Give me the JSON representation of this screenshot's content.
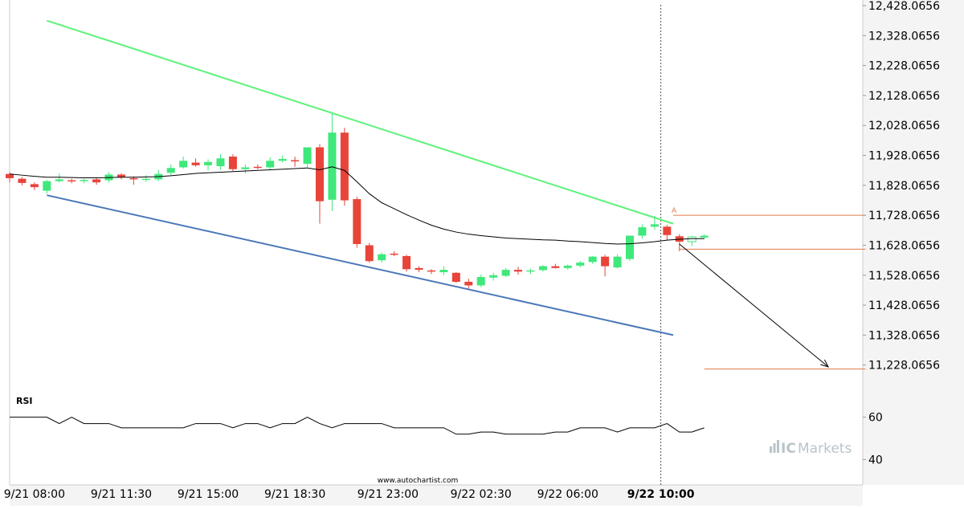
{
  "watermark": "www.autochartist.com",
  "brand": {
    "prefix": "IC",
    "name": "Markets"
  },
  "colors": {
    "up": "#3fe87a",
    "down": "#e8443a",
    "resistance": "#5df27a",
    "support": "#4a78b8",
    "level": "#e07a4a",
    "ma": "#000000",
    "axis": "#cccccc",
    "panel_bg": "#f4f4f4"
  },
  "chart_data": [
    {
      "type": "candlestick",
      "panel": "price",
      "ylim": [
        11128.0656,
        12428.0656
      ],
      "y_ticks": [
        "12,428.0656",
        "12,328.0656",
        "12,228.0656",
        "12,128.0656",
        "12,028.0656",
        "11,928.0656",
        "11,828.0656",
        "11,728.0656",
        "11,628.0656",
        "11,528.0656",
        "11,428.0656",
        "11,328.0656",
        "11,228.0656"
      ],
      "x_ticks": [
        "9/21 08:00",
        "9/21 11:30",
        "9/21 15:00",
        "9/21 18:30",
        "9/21 23:00",
        "9/22 02:30",
        "9/22 06:00",
        "9/22 10:00"
      ],
      "x_tick_index": [
        2,
        9,
        16,
        23,
        30.5,
        38,
        45,
        52.5
      ],
      "highlight_tick": "9/22 10:00",
      "vline_index": 52.5,
      "candles": [
        [
          11866,
          11872,
          11838,
          11852
        ],
        [
          11850,
          11856,
          11828,
          11836
        ],
        [
          11832,
          11838,
          11812,
          11822
        ],
        [
          11810,
          11846,
          11800,
          11842
        ],
        [
          11842,
          11868,
          11838,
          11848
        ],
        [
          11845,
          11850,
          11835,
          11842
        ],
        [
          11843,
          11850,
          11835,
          11846
        ],
        [
          11848,
          11854,
          11830,
          11838
        ],
        [
          11845,
          11872,
          11838,
          11864
        ],
        [
          11864,
          11868,
          11848,
          11856
        ],
        [
          11852,
          11858,
          11830,
          11850
        ],
        [
          11846,
          11862,
          11840,
          11850
        ],
        [
          11848,
          11880,
          11842,
          11866
        ],
        [
          11870,
          11898,
          11862,
          11886
        ],
        [
          11888,
          11924,
          11884,
          11910
        ],
        [
          11904,
          11918,
          11890,
          11895
        ],
        [
          11895,
          11915,
          11878,
          11906
        ],
        [
          11892,
          11932,
          11880,
          11918
        ],
        [
          11924,
          11932,
          11876,
          11882
        ],
        [
          11882,
          11898,
          11868,
          11888
        ],
        [
          11890,
          11898,
          11882,
          11888
        ],
        [
          11888,
          11922,
          11882,
          11910
        ],
        [
          11910,
          11928,
          11904,
          11916
        ],
        [
          11912,
          11924,
          11890,
          11910
        ],
        [
          11900,
          11950,
          11888,
          11955
        ],
        [
          11955,
          11966,
          11700,
          11775
        ],
        [
          11780,
          12068,
          11742,
          12004
        ],
        [
          12004,
          12020,
          11760,
          11778
        ],
        [
          11782,
          11790,
          11620,
          11632
        ],
        [
          11628,
          11636,
          11570,
          11575
        ],
        [
          11578,
          11604,
          11570,
          11598
        ],
        [
          11600,
          11608,
          11592,
          11596
        ],
        [
          11592,
          11596,
          11540,
          11548
        ],
        [
          11552,
          11558,
          11538,
          11546
        ],
        [
          11544,
          11548,
          11532,
          11540
        ],
        [
          11538,
          11558,
          11528,
          11546
        ],
        [
          11536,
          11538,
          11502,
          11506
        ],
        [
          11506,
          11516,
          11482,
          11494
        ],
        [
          11494,
          11530,
          11488,
          11522
        ],
        [
          11520,
          11536,
          11510,
          11528
        ],
        [
          11526,
          11552,
          11522,
          11546
        ],
        [
          11546,
          11556,
          11530,
          11540
        ],
        [
          11540,
          11550,
          11532,
          11544
        ],
        [
          11545,
          11562,
          11540,
          11558
        ],
        [
          11558,
          11566,
          11550,
          11552
        ],
        [
          11552,
          11564,
          11546,
          11560
        ],
        [
          11560,
          11576,
          11554,
          11570
        ],
        [
          11572,
          11592,
          11566,
          11590
        ],
        [
          11590,
          11596,
          11524,
          11558
        ],
        [
          11554,
          11598,
          11550,
          11590
        ],
        [
          11582,
          11654,
          11576,
          11660
        ],
        [
          11660,
          11698,
          11650,
          11688
        ],
        [
          11690,
          11725,
          11680,
          11698
        ],
        [
          11690,
          11696,
          11645,
          11662
        ],
        [
          11658,
          11665,
          11608,
          11640
        ],
        [
          11640,
          11660,
          11625,
          11656
        ],
        [
          11654,
          11664,
          11648,
          11660
        ]
      ],
      "ma": [
        11866,
        11862,
        11858,
        11855,
        11855,
        11854,
        11853,
        11853,
        11854,
        11855,
        11855,
        11856,
        11857,
        11860,
        11864,
        11868,
        11870,
        11872,
        11874,
        11876,
        11878,
        11880,
        11882,
        11884,
        11886,
        11880,
        11890,
        11878,
        11840,
        11800,
        11770,
        11750,
        11730,
        11712,
        11695,
        11682,
        11672,
        11665,
        11660,
        11656,
        11652,
        11650,
        11648,
        11646,
        11645,
        11642,
        11640,
        11637,
        11634,
        11632,
        11633,
        11636,
        11640,
        11645,
        11648,
        11650,
        11650
      ],
      "resistance": [
        [
          3,
          12378
        ],
        [
          53.5,
          11700
        ]
      ],
      "support": [
        [
          3,
          11795
        ],
        [
          53.5,
          11328
        ]
      ],
      "levels": [
        {
          "from": 53.5,
          "to": 69,
          "y": 11728,
          "label": "A"
        },
        {
          "from": 54,
          "to": 69,
          "y": 11615
        },
        {
          "from": 56,
          "to": 69,
          "y": 11215
        }
      ],
      "arrow": [
        [
          54,
          11632
        ],
        [
          66,
          11222
        ]
      ]
    },
    {
      "type": "line",
      "panel": "indicator",
      "title": "RSI",
      "ylim": [
        25,
        72
      ],
      "y_ticks": [
        60,
        40
      ],
      "values": [
        60,
        60,
        60,
        60,
        57,
        60,
        57,
        57,
        57,
        55,
        55,
        55,
        55,
        55,
        55,
        57,
        57,
        57,
        55,
        57,
        57,
        55,
        57,
        57,
        60,
        57,
        55,
        57,
        57,
        57,
        57,
        55,
        55,
        55,
        55,
        55,
        52,
        52,
        53,
        53,
        52,
        52,
        52,
        52,
        53,
        53,
        55,
        55,
        55,
        53,
        55,
        55,
        55,
        57,
        53,
        53,
        55
      ]
    }
  ]
}
